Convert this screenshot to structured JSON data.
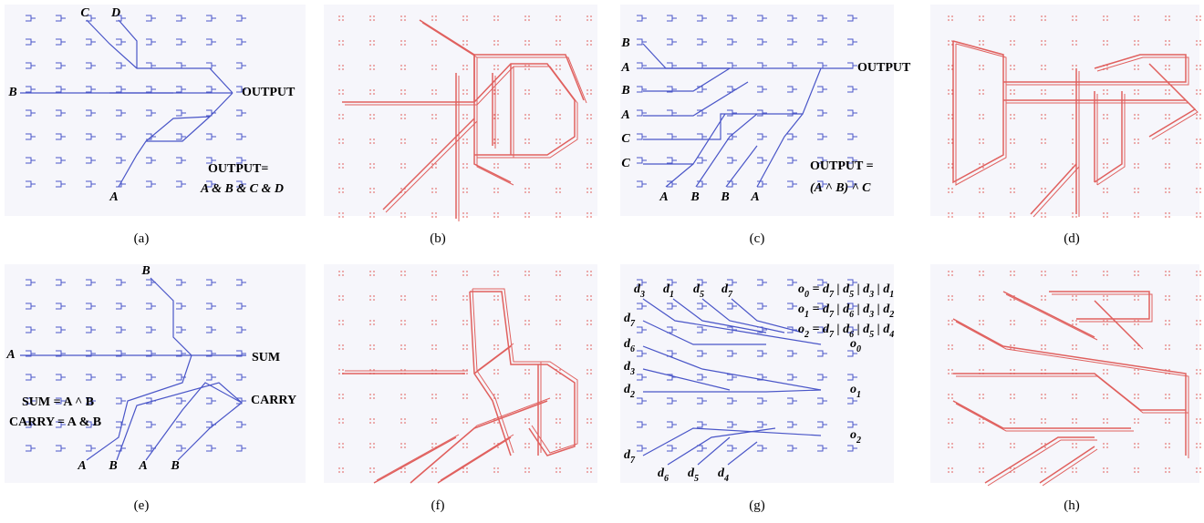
{
  "panels": [
    {
      "label": "(a)",
      "texts": [
        "C",
        "D",
        "B",
        "OUTPUT",
        "OUTPUT=",
        "A & B & C & D",
        "A"
      ]
    },
    {
      "label": "(b)"
    },
    {
      "label": "(c)",
      "texts": [
        "B",
        "A",
        "B",
        "A",
        "C",
        "C",
        "OUTPUT",
        "A",
        "B",
        "B",
        "A",
        "OUTPUT =",
        "(A ^ B) ^ C"
      ]
    },
    {
      "label": "(d)"
    },
    {
      "label": "(e)",
      "texts": [
        "B",
        "A",
        "SUM",
        "SUM = A ^ B",
        "CARRY = A & B",
        "CARRY",
        "A",
        "B",
        "A",
        "B"
      ]
    },
    {
      "label": "(f)"
    },
    {
      "label": "(g)",
      "texts": [
        "d3",
        "d1",
        "d5",
        "d7",
        "o0 = d7 | d5 | d3 | d1",
        "o1 = d7 | d6 | d3 | d2",
        "o2 = d7 | d6 | d5 | d4",
        "d7",
        "d6",
        "d3",
        "d2",
        "o0",
        "o1",
        "o2",
        "d7",
        "d6",
        "d5",
        "d4"
      ]
    },
    {
      "label": "(h)"
    }
  ]
}
